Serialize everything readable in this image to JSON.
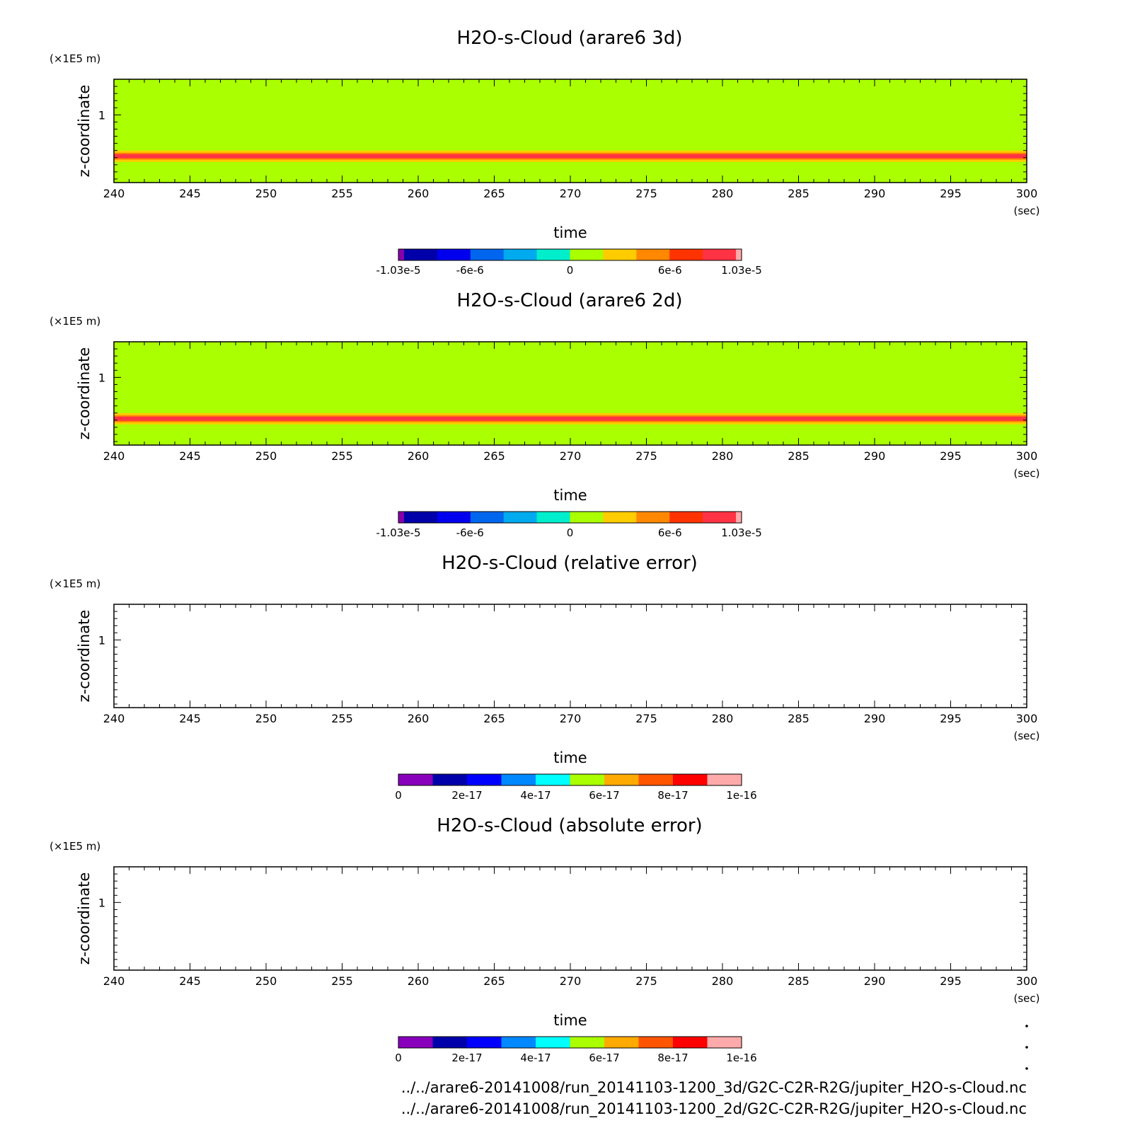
{
  "chart_data": [
    {
      "type": "heatmap",
      "title": "H2O-s-Cloud (arare6 3d)",
      "xlabel": "time",
      "x_unit": "(sec)",
      "ylabel": "z-coordinate",
      "y_unit": "(×1E5 m)",
      "xlim": [
        240,
        300
      ],
      "ylim": [
        0.05,
        1.5
      ],
      "x_ticks": [
        "240",
        "245",
        "250",
        "255",
        "260",
        "265",
        "270",
        "275",
        "280",
        "285",
        "290",
        "295",
        "300"
      ],
      "y_ticks": [
        "1"
      ],
      "background_value": 0,
      "cloud_layer": {
        "z_center": 0.42,
        "peak_value": 9.5e-06
      },
      "colorbar": {
        "tick_labels": [
          "-1.03e-5",
          "-6e-6",
          "0",
          "6e-6",
          "1.03e-5"
        ],
        "colors": [
          "#8800aa",
          "#0000aa",
          "#0000ee",
          "#0066ee",
          "#00aaee",
          "#00eecc",
          "#aaff00",
          "#ffcc00",
          "#ff8800",
          "#ff3300",
          "#ff3344",
          "#ffaaaa"
        ]
      }
    },
    {
      "type": "heatmap",
      "title": "H2O-s-Cloud (arare6 2d)",
      "xlabel": "time",
      "x_unit": "(sec)",
      "ylabel": "z-coordinate",
      "y_unit": "(×1E5 m)",
      "xlim": [
        240,
        300
      ],
      "ylim": [
        0.05,
        1.5
      ],
      "x_ticks": [
        "240",
        "245",
        "250",
        "255",
        "260",
        "265",
        "270",
        "275",
        "280",
        "285",
        "290",
        "295",
        "300"
      ],
      "y_ticks": [
        "1"
      ],
      "background_value": 0,
      "cloud_layer": {
        "z_center": 0.42,
        "peak_value": 9.5e-06
      },
      "colorbar": {
        "tick_labels": [
          "-1.03e-5",
          "-6e-6",
          "0",
          "6e-6",
          "1.03e-5"
        ],
        "colors": [
          "#8800aa",
          "#0000aa",
          "#0000ee",
          "#0066ee",
          "#00aaee",
          "#00eecc",
          "#aaff00",
          "#ffcc00",
          "#ff8800",
          "#ff3300",
          "#ff3344",
          "#ffaaaa"
        ]
      }
    },
    {
      "type": "heatmap",
      "title": "H2O-s-Cloud (relative error)",
      "xlabel": "time",
      "x_unit": "(sec)",
      "ylabel": "z-coordinate",
      "y_unit": "(×1E5 m)",
      "xlim": [
        240,
        300
      ],
      "ylim": [
        0.05,
        1.5
      ],
      "x_ticks": [
        "240",
        "245",
        "250",
        "255",
        "260",
        "265",
        "270",
        "275",
        "280",
        "285",
        "290",
        "295",
        "300"
      ],
      "y_ticks": [
        "1"
      ],
      "background_value": null,
      "colorbar": {
        "tick_labels": [
          "0",
          "2e-17",
          "4e-17",
          "6e-17",
          "8e-17",
          "1e-16"
        ],
        "colors": [
          "#8800bb",
          "#0000aa",
          "#0000ff",
          "#0088ff",
          "#00ffff",
          "#aaff00",
          "#ffaa00",
          "#ff5500",
          "#ff0000",
          "#ffaaaa"
        ]
      }
    },
    {
      "type": "heatmap",
      "title": "H2O-s-Cloud (absolute error)",
      "xlabel": "time",
      "x_unit": "(sec)",
      "ylabel": "z-coordinate",
      "y_unit": "(×1E5 m)",
      "xlim": [
        240,
        300
      ],
      "ylim": [
        0.05,
        1.5
      ],
      "x_ticks": [
        "240",
        "245",
        "250",
        "255",
        "260",
        "265",
        "270",
        "275",
        "280",
        "285",
        "290",
        "295",
        "300"
      ],
      "y_ticks": [
        "1"
      ],
      "background_value": null,
      "colorbar": {
        "tick_labels": [
          "0",
          "2e-17",
          "4e-17",
          "6e-17",
          "8e-17",
          "1e-16"
        ],
        "colors": [
          "#8800bb",
          "#0000aa",
          "#0000ff",
          "#0088ff",
          "#00ffff",
          "#aaff00",
          "#ffaa00",
          "#ff5500",
          "#ff0000",
          "#ffaaaa"
        ]
      }
    }
  ],
  "footer": {
    "path_3d": "../../arare6-20141008/run_20141103-1200_3d/G2C-C2R-R2G/jupiter_H2O-s-Cloud.nc",
    "path_2d": "../../arare6-20141008/run_20141103-1200_2d/G2C-C2R-R2G/jupiter_H2O-s-Cloud.nc"
  }
}
